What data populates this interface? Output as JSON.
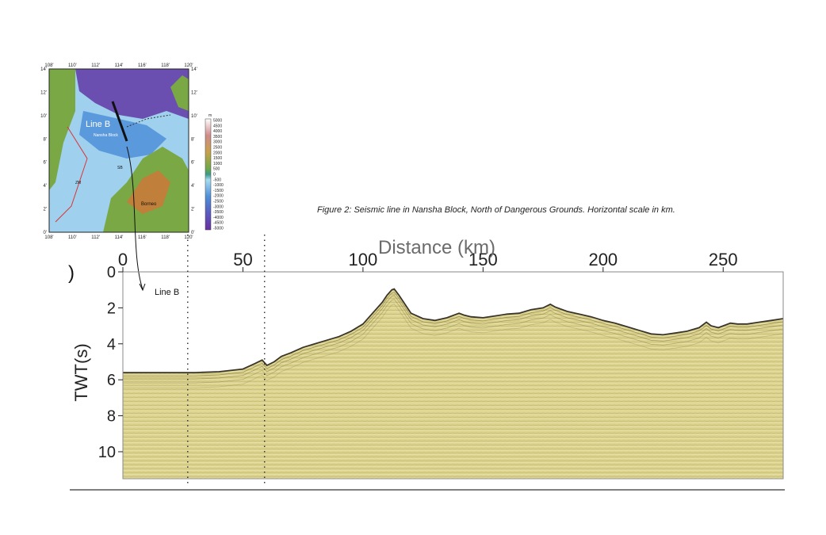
{
  "caption": "Figure 2: Seismic line in Nansha Block, North of Dangerous Grounds. Horizontal scale in km.",
  "map": {
    "lon_ticks": [
      "108'",
      "110'",
      "112'",
      "114'",
      "116'",
      "118'",
      "120'"
    ],
    "lat_ticks": [
      "14'",
      "12'",
      "10'",
      "8'",
      "6'",
      "4'",
      "2'",
      "0'"
    ],
    "line_label": "Line B",
    "region_labels": [
      "Nansha Block",
      "Borneo",
      "ZM",
      "SB"
    ],
    "colorbar_unit": "m",
    "colorbar_ticks": [
      "5000",
      "4500",
      "4000",
      "3500",
      "3000",
      "2500",
      "2000",
      "1500",
      "1000",
      "500",
      "0",
      "-500",
      "-1000",
      "-1500",
      "-2000",
      "-2500",
      "-3000",
      "-3500",
      "-4000",
      "-4500",
      "-5000"
    ],
    "colors": {
      "deep": "#6a4fb0",
      "basin": "#4e8fd8",
      "shelf": "#9fd0ee",
      "land_low": "#7aa845",
      "land_high": "#c07f3a"
    }
  },
  "chart_data": {
    "type": "area",
    "title": "",
    "xlabel": "Distance (km)",
    "ylabel": "TWT(s)",
    "panel_label": ")",
    "xlim": [
      0,
      275
    ],
    "ylim": [
      11.5,
      0
    ],
    "x_ticks": [
      0,
      50,
      100,
      150,
      200,
      250
    ],
    "y_ticks": [
      0,
      2,
      4,
      6,
      8,
      10
    ],
    "line_annotation": "Line B",
    "dashed_markers_km": [
      27,
      59
    ],
    "seafloor": {
      "x": [
        0,
        10,
        20,
        30,
        40,
        50,
        55,
        58,
        60,
        63,
        66,
        70,
        75,
        80,
        85,
        90,
        95,
        100,
        104,
        108,
        110,
        112,
        113,
        115,
        118,
        120,
        125,
        130,
        135,
        140,
        142,
        145,
        150,
        155,
        160,
        165,
        170,
        175,
        178,
        180,
        185,
        190,
        195,
        200,
        205,
        210,
        215,
        220,
        225,
        230,
        235,
        240,
        243,
        245,
        248,
        250,
        253,
        256,
        260,
        265,
        270,
        275
      ],
      "y": [
        5.6,
        5.6,
        5.6,
        5.6,
        5.55,
        5.4,
        5.1,
        4.9,
        5.2,
        5.0,
        4.7,
        4.5,
        4.2,
        4.0,
        3.8,
        3.6,
        3.3,
        2.9,
        2.3,
        1.7,
        1.3,
        1.0,
        0.95,
        1.3,
        1.9,
        2.3,
        2.6,
        2.7,
        2.55,
        2.3,
        2.4,
        2.5,
        2.55,
        2.45,
        2.35,
        2.3,
        2.1,
        2.0,
        1.8,
        1.95,
        2.2,
        2.35,
        2.5,
        2.7,
        2.85,
        3.05,
        3.25,
        3.45,
        3.5,
        3.4,
        3.3,
        3.1,
        2.8,
        3.0,
        3.1,
        3.0,
        2.85,
        2.9,
        2.9,
        2.8,
        2.7,
        2.6
      ]
    },
    "colors": {
      "fill": "#d9d08a",
      "seafloor": "#3a352a",
      "axis": "#222222"
    }
  }
}
